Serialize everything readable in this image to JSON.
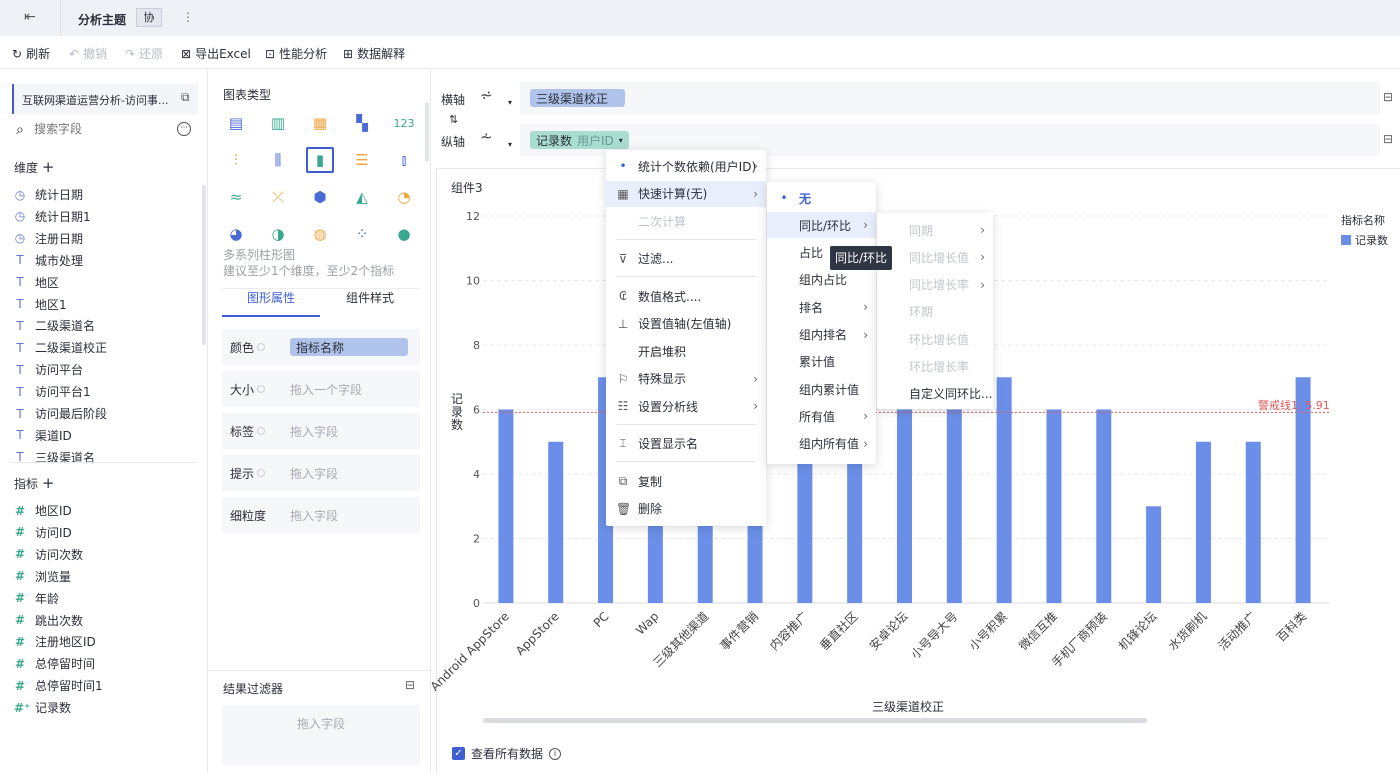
{
  "topbar": {
    "title": "分析主题",
    "collab_badge": "协"
  },
  "toolbar": {
    "refresh": "刷新",
    "undo": "撤销",
    "redo": "还原",
    "export": "导出Excel",
    "perf": "性能分析",
    "explain": "数据解释"
  },
  "left": {
    "dataset": "互联网渠道运营分析-访问事...",
    "search_placeholder": "搜索字段",
    "dimensions_label": "维度",
    "dimensions": [
      {
        "icon": "clock",
        "name": "统计日期"
      },
      {
        "icon": "clock",
        "name": "统计日期1"
      },
      {
        "icon": "clock",
        "name": "注册日期"
      },
      {
        "icon": "text",
        "name": "城市处理"
      },
      {
        "icon": "text",
        "name": "地区"
      },
      {
        "icon": "text",
        "name": "地区1"
      },
      {
        "icon": "text",
        "name": "二级渠道名"
      },
      {
        "icon": "text",
        "name": "二级渠道校正"
      },
      {
        "icon": "text",
        "name": "访问平台"
      },
      {
        "icon": "text",
        "name": "访问平台1"
      },
      {
        "icon": "text",
        "name": "访问最后阶段"
      },
      {
        "icon": "text",
        "name": "渠道ID"
      },
      {
        "icon": "text",
        "name": "三级渠道名"
      }
    ],
    "measures_label": "指标",
    "measures": [
      {
        "icon": "hash",
        "name": "地区ID"
      },
      {
        "icon": "hash",
        "name": "访问ID"
      },
      {
        "icon": "hash",
        "name": "访问次数"
      },
      {
        "icon": "hash",
        "name": "浏览量"
      },
      {
        "icon": "hash",
        "name": "年龄"
      },
      {
        "icon": "hash",
        "name": "跳出次数"
      },
      {
        "icon": "hash",
        "name": "注册地区ID"
      },
      {
        "icon": "hash",
        "name": "总停留时间"
      },
      {
        "icon": "hash",
        "name": "总停留时间1"
      },
      {
        "icon": "hash-plus",
        "name": "记录数"
      }
    ]
  },
  "mid": {
    "chart_type_label": "图表类型",
    "selected_type": "多系列柱形图",
    "hint": "建议至少1个维度，至少2个指标",
    "tabs": [
      "图形属性",
      "组件样式"
    ],
    "props": [
      {
        "label": "颜色",
        "value": "指标名称"
      },
      {
        "label": "大小",
        "placeholder": "拖入一个字段"
      },
      {
        "label": "标签",
        "placeholder": "拖入字段"
      },
      {
        "label": "提示",
        "placeholder": "拖入字段"
      },
      {
        "label": "细粒度",
        "placeholder": "拖入字段"
      }
    ],
    "result_filter": "结果过滤器",
    "result_filter_placeholder": "拖入字段"
  },
  "axes": {
    "x_label": "横轴",
    "x_field": "三级渠道校正",
    "y_label": "纵轴",
    "y_field": "记录数",
    "y_field_sub": "用户ID"
  },
  "component_title": "组件3",
  "show_all_data": "查看所有数据",
  "colors": {
    "bar": "#6b8fe8",
    "accent": "#3d5fd1",
    "warning": "#e05a5a"
  },
  "chart_data": {
    "type": "bar",
    "xlabel": "三级渠道校正",
    "ylabel": "记录数",
    "ylim": [
      0,
      12
    ],
    "yticks": [
      0,
      2,
      4,
      6,
      8,
      10,
      12
    ],
    "categories": [
      "Android AppStore",
      "AppStore",
      "PC",
      "Wap",
      "三级其他渠道",
      "事件营销",
      "内容推广",
      "垂直社区",
      "安卓论坛",
      "小号导大号",
      "小号积累",
      "微信互推",
      "手机厂商预装",
      "机锋论坛",
      "水货刷机",
      "活动推广",
      "百科类"
    ],
    "series": [
      {
        "name": "记录数",
        "values": [
          6,
          5,
          7,
          5,
          5,
          5,
          5,
          5,
          6,
          6,
          7,
          6,
          6,
          3,
          5,
          5,
          7
        ]
      }
    ],
    "legend_title": "指标名称",
    "legend": "top-right",
    "grid": true,
    "reference_line": {
      "label": "警戒线1: 5.91",
      "value": 5.91
    }
  },
  "menu1": [
    {
      "label": "统计个数依赖(用户ID)",
      "icon": "dot",
      "arrow": true
    },
    {
      "label": "快速计算(无)",
      "icon": "calculator",
      "arrow": true,
      "hl": true
    },
    {
      "label": "二次计算",
      "disabled": true
    },
    {
      "div": true
    },
    {
      "label": "过滤...",
      "icon": "filter"
    },
    {
      "div": true
    },
    {
      "label": "数值格式....",
      "icon": "number-format"
    },
    {
      "label": "设置值轴(左值轴)",
      "icon": "axis"
    },
    {
      "label": "开启堆积"
    },
    {
      "label": "特殊显示",
      "icon": "flag",
      "arrow": true
    },
    {
      "label": "设置分析线",
      "icon": "lines",
      "arrow": true
    },
    {
      "div": true
    },
    {
      "label": "设置显示名",
      "icon": "rename"
    },
    {
      "div": true
    },
    {
      "label": "复制",
      "icon": "copy"
    },
    {
      "label": "删除",
      "icon": "trash"
    }
  ],
  "menu2": [
    {
      "label": "无",
      "selected": true
    },
    {
      "label": "同比/环比",
      "arrow": true,
      "hl": true
    },
    {
      "label": "占比"
    },
    {
      "label": "组内占比"
    },
    {
      "label": "排名",
      "arrow": true
    },
    {
      "label": "组内排名",
      "arrow": true
    },
    {
      "label": "累计值"
    },
    {
      "label": "组内累计值"
    },
    {
      "label": "所有值",
      "arrow": true
    },
    {
      "label": "组内所有值",
      "arrow": true
    }
  ],
  "menu3": [
    {
      "label": "同期",
      "arrow": true,
      "disabled": true
    },
    {
      "label": "同比增长值",
      "arrow": true,
      "disabled": true
    },
    {
      "label": "同比增长率",
      "arrow": true,
      "disabled": true
    },
    {
      "label": "环期",
      "disabled": true
    },
    {
      "label": "环比增长值",
      "disabled": true
    },
    {
      "label": "环比增长率",
      "disabled": true
    },
    {
      "label": "自定义同环比..."
    }
  ],
  "tooltip": "同比/环比"
}
